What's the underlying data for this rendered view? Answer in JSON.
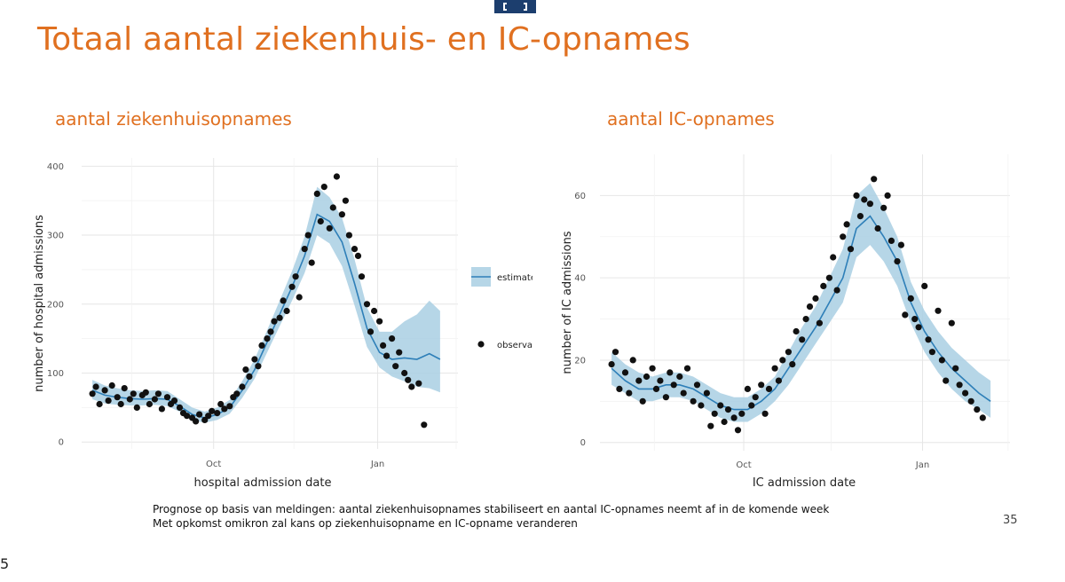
{
  "slide": {
    "title": "Totaal aantal ziekenhuis- en IC-opnames",
    "footnotes": [
      "Prognose op basis van meldingen: aantal ziekenhuisopnames stabiliseert en aantal IC-opnames neemt af in de komende week",
      "Met opkomst omikron zal kans op ziekenhuisopname en IC-opname veranderen"
    ],
    "page_number": "35",
    "edge_mark": "5",
    "colors": {
      "title": "#e07020",
      "estimate_line": "#2e7fb8",
      "estimate_band": "#a9cfe3",
      "observations": "#111111",
      "logo": "#1c3e6e"
    }
  },
  "chart_data": [
    {
      "type": "line",
      "panel_title": "aantal ziekenhuisopnames",
      "xlabel": "hospital admission date",
      "ylabel": "number of hospital admissions",
      "x_ticks": [
        {
          "label": "Oct",
          "date": "2021-10-01"
        },
        {
          "label": "Jan",
          "date": "2022-01-01"
        }
      ],
      "y_ticks": [
        0,
        100,
        200,
        300,
        400
      ],
      "ylim": [
        -10,
        412
      ],
      "xlim": [
        "2021-07-19",
        "2022-02-15"
      ],
      "grid": true,
      "series": [
        {
          "name": "estimate",
          "kind": "line_with_band",
          "x": [
            "2021-07-25",
            "2021-08-01",
            "2021-08-08",
            "2021-08-15",
            "2021-08-22",
            "2021-08-29",
            "2021-09-05",
            "2021-09-12",
            "2021-09-19",
            "2021-09-26",
            "2021-10-03",
            "2021-10-10",
            "2021-10-17",
            "2021-10-24",
            "2021-10-31",
            "2021-11-07",
            "2021-11-14",
            "2021-11-21",
            "2021-11-28",
            "2021-12-05",
            "2021-12-12",
            "2021-12-19",
            "2021-12-26",
            "2022-01-02",
            "2022-01-09",
            "2022-01-16",
            "2022-01-23",
            "2022-01-30",
            "2022-02-05"
          ],
          "y": [
            75,
            68,
            65,
            63,
            62,
            63,
            62,
            52,
            40,
            35,
            40,
            50,
            75,
            105,
            145,
            185,
            225,
            270,
            330,
            320,
            290,
            230,
            165,
            130,
            120,
            122,
            120,
            128,
            120
          ],
          "lower": [
            62,
            56,
            54,
            53,
            53,
            54,
            52,
            44,
            32,
            28,
            32,
            41,
            64,
            92,
            130,
            168,
            205,
            245,
            300,
            288,
            255,
            198,
            138,
            108,
            95,
            88,
            80,
            78,
            72
          ],
          "upper": [
            90,
            82,
            78,
            75,
            74,
            75,
            74,
            62,
            50,
            44,
            50,
            61,
            88,
            120,
            162,
            205,
            248,
            298,
            370,
            355,
            325,
            265,
            195,
            160,
            160,
            175,
            185,
            205,
            190
          ]
        },
        {
          "name": "observations",
          "kind": "scatter",
          "x": [
            "2021-07-25",
            "2021-07-27",
            "2021-07-29",
            "2021-08-01",
            "2021-08-03",
            "2021-08-05",
            "2021-08-08",
            "2021-08-10",
            "2021-08-12",
            "2021-08-15",
            "2021-08-17",
            "2021-08-19",
            "2021-08-22",
            "2021-08-24",
            "2021-08-26",
            "2021-08-29",
            "2021-08-31",
            "2021-09-02",
            "2021-09-05",
            "2021-09-07",
            "2021-09-09",
            "2021-09-12",
            "2021-09-14",
            "2021-09-16",
            "2021-09-19",
            "2021-09-21",
            "2021-09-23",
            "2021-09-26",
            "2021-09-28",
            "2021-09-30",
            "2021-10-03",
            "2021-10-05",
            "2021-10-07",
            "2021-10-10",
            "2021-10-12",
            "2021-10-14",
            "2021-10-17",
            "2021-10-19",
            "2021-10-21",
            "2021-10-24",
            "2021-10-26",
            "2021-10-28",
            "2021-10-31",
            "2021-11-02",
            "2021-11-04",
            "2021-11-07",
            "2021-11-09",
            "2021-11-11",
            "2021-11-14",
            "2021-11-16",
            "2021-11-18",
            "2021-11-21",
            "2021-11-23",
            "2021-11-25",
            "2021-11-28",
            "2021-11-30",
            "2021-12-02",
            "2021-12-05",
            "2021-12-07",
            "2021-12-09",
            "2021-12-12",
            "2021-12-14",
            "2021-12-16",
            "2021-12-19",
            "2021-12-21",
            "2021-12-23",
            "2021-12-26",
            "2021-12-28",
            "2021-12-30",
            "2022-01-02",
            "2022-01-04",
            "2022-01-06",
            "2022-01-09",
            "2022-01-11",
            "2022-01-13",
            "2022-01-16",
            "2022-01-18",
            "2022-01-20",
            "2022-01-24",
            "2022-01-27"
          ],
          "y": [
            70,
            80,
            55,
            75,
            60,
            82,
            65,
            55,
            78,
            62,
            70,
            50,
            68,
            72,
            55,
            62,
            70,
            48,
            65,
            55,
            60,
            50,
            42,
            38,
            35,
            30,
            40,
            32,
            38,
            45,
            42,
            55,
            48,
            52,
            65,
            70,
            80,
            105,
            95,
            120,
            110,
            140,
            150,
            160,
            175,
            180,
            205,
            190,
            225,
            240,
            210,
            280,
            300,
            260,
            360,
            320,
            370,
            310,
            340,
            385,
            330,
            350,
            300,
            280,
            270,
            240,
            200,
            160,
            190,
            175,
            140,
            125,
            150,
            110,
            130,
            100,
            90,
            80,
            85,
            25
          ]
        }
      ],
      "legend": {
        "placement": "right",
        "entries": [
          "estimate",
          "observations"
        ]
      }
    },
    {
      "type": "line",
      "panel_title": "aantal IC-opnames",
      "xlabel": "IC admission date",
      "ylabel": "number of IC admissions",
      "x_ticks": [
        {
          "label": "Oct",
          "date": "2021-10-01"
        },
        {
          "label": "Jan",
          "date": "2022-01-01"
        }
      ],
      "y_ticks": [
        0,
        20,
        40,
        60
      ],
      "ylim": [
        -2,
        70
      ],
      "xlim": [
        "2021-07-19",
        "2022-02-15"
      ],
      "grid": true,
      "series": [
        {
          "name": "estimate",
          "kind": "line_with_band",
          "x": [
            "2021-07-25",
            "2021-08-01",
            "2021-08-08",
            "2021-08-15",
            "2021-08-22",
            "2021-08-29",
            "2021-09-05",
            "2021-09-12",
            "2021-09-19",
            "2021-09-26",
            "2021-10-03",
            "2021-10-10",
            "2021-10-17",
            "2021-10-24",
            "2021-10-31",
            "2021-11-07",
            "2021-11-14",
            "2021-11-21",
            "2021-11-28",
            "2021-12-05",
            "2021-12-12",
            "2021-12-19",
            "2021-12-26",
            "2022-01-02",
            "2022-01-09",
            "2022-01-16",
            "2022-01-23",
            "2022-01-30",
            "2022-02-05"
          ],
          "y": [
            18,
            15,
            13,
            13,
            14,
            14,
            13,
            11,
            9,
            8,
            8,
            10,
            13,
            18,
            23,
            28,
            34,
            40,
            52,
            55,
            50,
            44,
            34,
            27,
            22,
            18,
            15,
            12,
            10
          ],
          "lower": [
            14,
            12,
            10,
            10,
            11,
            11,
            10,
            8,
            6,
            5,
            5,
            7,
            10,
            14,
            19,
            24,
            29,
            34,
            45,
            48,
            44,
            38,
            29,
            22,
            17,
            13,
            10,
            8,
            6
          ],
          "upper": [
            22,
            19,
            17,
            16,
            17,
            17,
            16,
            14,
            12,
            11,
            11,
            13,
            16,
            22,
            28,
            33,
            40,
            47,
            60,
            63,
            57,
            50,
            39,
            32,
            27,
            23,
            20,
            17,
            15
          ]
        },
        {
          "name": "observations",
          "kind": "scatter",
          "x": [
            "2021-07-25",
            "2021-07-27",
            "2021-07-29",
            "2021-08-01",
            "2021-08-03",
            "2021-08-05",
            "2021-08-08",
            "2021-08-10",
            "2021-08-12",
            "2021-08-15",
            "2021-08-17",
            "2021-08-19",
            "2021-08-22",
            "2021-08-24",
            "2021-08-26",
            "2021-08-29",
            "2021-08-31",
            "2021-09-02",
            "2021-09-05",
            "2021-09-07",
            "2021-09-09",
            "2021-09-12",
            "2021-09-14",
            "2021-09-16",
            "2021-09-19",
            "2021-09-21",
            "2021-09-23",
            "2021-09-26",
            "2021-09-28",
            "2021-09-30",
            "2021-10-03",
            "2021-10-05",
            "2021-10-07",
            "2021-10-10",
            "2021-10-12",
            "2021-10-14",
            "2021-10-17",
            "2021-10-19",
            "2021-10-21",
            "2021-10-24",
            "2021-10-26",
            "2021-10-28",
            "2021-10-31",
            "2021-11-02",
            "2021-11-04",
            "2021-11-07",
            "2021-11-09",
            "2021-11-11",
            "2021-11-14",
            "2021-11-16",
            "2021-11-18",
            "2021-11-21",
            "2021-11-23",
            "2021-11-25",
            "2021-11-28",
            "2021-11-30",
            "2021-12-02",
            "2021-12-05",
            "2021-12-07",
            "2021-12-09",
            "2021-12-12",
            "2021-12-14",
            "2021-12-16",
            "2021-12-19",
            "2021-12-21",
            "2021-12-23",
            "2021-12-26",
            "2021-12-28",
            "2021-12-30",
            "2022-01-02",
            "2022-01-04",
            "2022-01-06",
            "2022-01-09",
            "2022-01-11",
            "2022-01-13",
            "2022-01-16",
            "2022-01-18",
            "2022-01-20",
            "2022-01-23",
            "2022-01-26",
            "2022-01-29",
            "2022-02-01"
          ],
          "y": [
            19,
            22,
            13,
            17,
            12,
            20,
            15,
            10,
            16,
            18,
            13,
            15,
            11,
            17,
            14,
            16,
            12,
            18,
            10,
            14,
            9,
            12,
            4,
            7,
            9,
            5,
            8,
            6,
            3,
            7,
            13,
            9,
            11,
            14,
            7,
            13,
            18,
            15,
            20,
            22,
            19,
            27,
            25,
            30,
            33,
            35,
            29,
            38,
            40,
            45,
            37,
            50,
            53,
            47,
            60,
            55,
            59,
            58,
            64,
            52,
            57,
            60,
            49,
            44,
            48,
            31,
            35,
            30,
            28,
            38,
            25,
            22,
            32,
            20,
            15,
            29,
            18,
            14,
            12,
            10,
            8,
            6
          ]
        }
      ],
      "legend": null
    }
  ]
}
